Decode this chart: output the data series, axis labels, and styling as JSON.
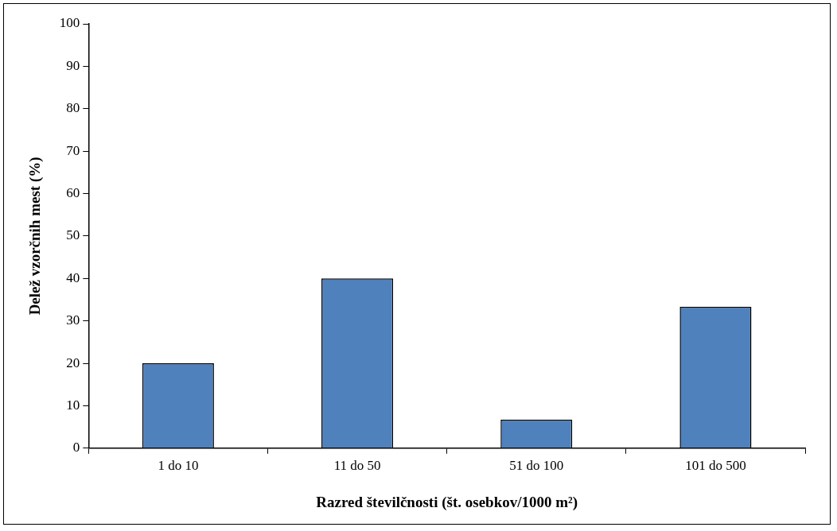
{
  "chart_data": {
    "type": "bar",
    "xlabel": "Razred številčnosti (št. osebkov/1000 m²)",
    "ylabel": "Delež vzorčnih mest (%)",
    "categories": [
      "1 do 10",
      "11 do 50",
      "51 do 100",
      "101 do 500"
    ],
    "values": [
      20,
      40,
      6.7,
      33.3
    ],
    "color": "#4f81bd",
    "ylim": [
      0,
      100
    ],
    "yticks": [
      0,
      10,
      20,
      30,
      40,
      50,
      60,
      70,
      80,
      90,
      100
    ],
    "grid": false,
    "legend": false
  }
}
